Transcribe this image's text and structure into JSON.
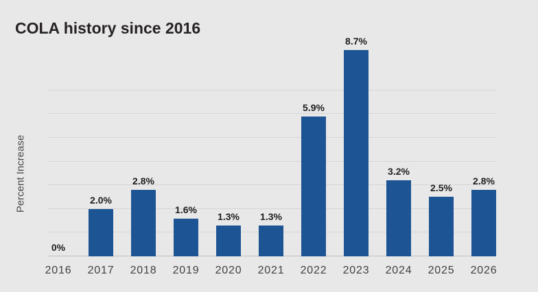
{
  "title": "COLA history since 2016",
  "colors": {
    "background": "#e8e8e8",
    "bar": "#1d5494",
    "gridline": "#d5d5d5",
    "baseline": "#bfbfbf",
    "title_text": "#272223",
    "axis_label_text": "#4a4a4a",
    "tick_label_text": "#414141",
    "value_label_text": "#1e1e1e"
  },
  "chart_data": {
    "type": "bar",
    "title": "COLA history since 2016",
    "xlabel": "",
    "ylabel": "Percent Increase",
    "categories": [
      "2016",
      "2017",
      "2018",
      "2019",
      "2020",
      "2021",
      "2022",
      "2023",
      "2024",
      "2025",
      "2026"
    ],
    "values": [
      0,
      2.0,
      2.8,
      1.6,
      1.3,
      1.3,
      5.9,
      8.7,
      3.2,
      2.5,
      2.8
    ],
    "value_labels": [
      "0%",
      "2.0%",
      "2.8%",
      "1.6%",
      "1.3%",
      "1.3%",
      "5.9%",
      "8.7%",
      "3.2%",
      "2.5%",
      "2.8%"
    ],
    "ylim": [
      0,
      9
    ],
    "gridlines_percent": [
      1,
      2,
      3,
      4,
      5,
      6,
      7
    ],
    "grid": true,
    "legend": false,
    "y_tick_labels_shown": false,
    "bar_color": "#1d5494"
  }
}
